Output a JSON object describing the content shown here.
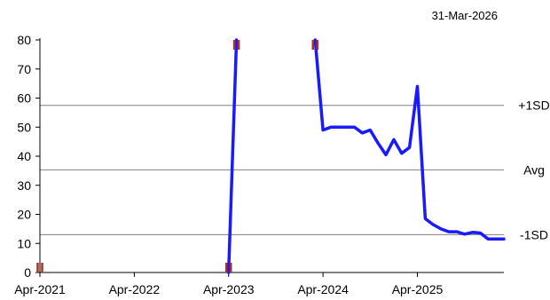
{
  "date_label": "31-Mar-2026",
  "chart_data": {
    "type": "line",
    "x_tick_labels": [
      "Apr-2021",
      "Apr-2022",
      "Apr-2023",
      "Apr-2024",
      "Apr-2025"
    ],
    "y_tick_labels": [
      "0",
      "10",
      "20",
      "30",
      "40",
      "50",
      "60",
      "70",
      "80"
    ],
    "ylim": [
      0,
      80
    ],
    "xlim": [
      "2021-04",
      "2026-03"
    ],
    "grid": false,
    "series_color": "#1a1aff",
    "reference_line_color": "#808080",
    "break_marker_color": "#b03020",
    "reference_lines": [
      {
        "label": "+1SD",
        "value": 57.5
      },
      {
        "label": "Avg",
        "value": 35.3
      },
      {
        "label": "-1SD",
        "value": 13.0
      }
    ],
    "segments": [
      {
        "x": [
          "2023-04",
          "2023-05"
        ],
        "y": [
          0,
          80
        ]
      },
      {
        "x": [
          "2024-03",
          "2024-04",
          "2024-05",
          "2024-06",
          "2024-07",
          "2024-08",
          "2024-09",
          "2024-10",
          "2024-11",
          "2024-12",
          "2025-01",
          "2025-02",
          "2025-03",
          "2025-04",
          "2025-05",
          "2025-06",
          "2025-07",
          "2025-08",
          "2025-09",
          "2025-10",
          "2025-11",
          "2025-12",
          "2026-01",
          "2026-02",
          "2026-03"
        ],
        "y": [
          80,
          49,
          50,
          50,
          50,
          50,
          48,
          49,
          44.5,
          40.5,
          45.7,
          41,
          43,
          64,
          18.5,
          16.5,
          15,
          14,
          14,
          13.2,
          13.8,
          13.6,
          11.5,
          11.5,
          11.5
        ]
      }
    ],
    "break_markers": [
      "2021-04",
      "2023-04",
      "2023-05",
      "2024-03"
    ]
  }
}
